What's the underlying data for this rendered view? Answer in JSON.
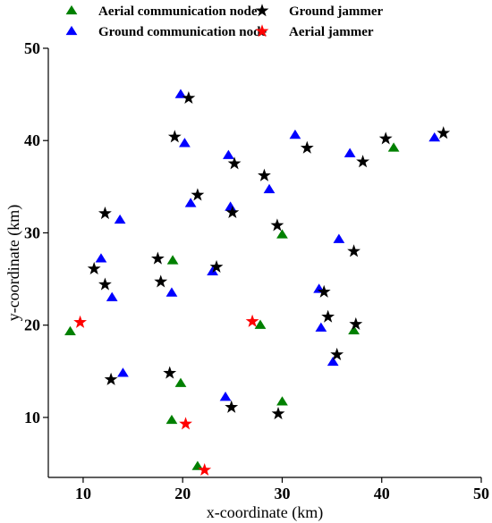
{
  "chart_data": {
    "type": "scatter",
    "title": "",
    "xlabel": "x-coordinate (km)",
    "ylabel": "y-coordinate (km)",
    "xlim": [
      6.5,
      50
    ],
    "ylim": [
      3.5,
      50
    ],
    "xticks": [
      10,
      20,
      30,
      40,
      50
    ],
    "yticks": [
      10,
      20,
      30,
      40,
      50
    ],
    "xtick_labels": [
      "10",
      "20",
      "30",
      "40",
      "50"
    ],
    "ytick_labels": [
      "10",
      "20",
      "30",
      "40",
      "50"
    ],
    "grid": false,
    "legend_position": "top",
    "series": [
      {
        "name": "Aerial communication node",
        "marker": "triangle",
        "color": "#008000",
        "points": [
          {
            "x": 8.7,
            "y": 19.3
          },
          {
            "x": 19.0,
            "y": 27.0
          },
          {
            "x": 30.0,
            "y": 29.8
          },
          {
            "x": 27.8,
            "y": 20.0
          },
          {
            "x": 37.2,
            "y": 19.4
          },
          {
            "x": 41.2,
            "y": 39.2
          },
          {
            "x": 19.8,
            "y": 13.7
          },
          {
            "x": 18.9,
            "y": 9.7
          },
          {
            "x": 30.0,
            "y": 11.7
          },
          {
            "x": 21.5,
            "y": 4.7
          }
        ]
      },
      {
        "name": "Ground communication node",
        "marker": "triangle",
        "color": "#0000ff",
        "points": [
          {
            "x": 19.8,
            "y": 45.0
          },
          {
            "x": 20.2,
            "y": 39.7
          },
          {
            "x": 24.6,
            "y": 38.4
          },
          {
            "x": 28.7,
            "y": 34.7
          },
          {
            "x": 31.3,
            "y": 40.6
          },
          {
            "x": 36.8,
            "y": 38.6
          },
          {
            "x": 45.3,
            "y": 40.3
          },
          {
            "x": 13.7,
            "y": 31.4
          },
          {
            "x": 20.8,
            "y": 33.2
          },
          {
            "x": 24.8,
            "y": 32.8
          },
          {
            "x": 11.8,
            "y": 27.2
          },
          {
            "x": 12.9,
            "y": 23.0
          },
          {
            "x": 18.9,
            "y": 23.5
          },
          {
            "x": 23.0,
            "y": 25.8
          },
          {
            "x": 35.7,
            "y": 29.3
          },
          {
            "x": 33.7,
            "y": 23.9
          },
          {
            "x": 33.9,
            "y": 19.7
          },
          {
            "x": 35.1,
            "y": 16.0
          },
          {
            "x": 14.0,
            "y": 14.8
          },
          {
            "x": 24.3,
            "y": 12.2
          }
        ]
      },
      {
        "name": "Ground jammer",
        "marker": "star",
        "color": "#000000",
        "points": [
          {
            "x": 20.6,
            "y": 44.6
          },
          {
            "x": 19.2,
            "y": 40.4
          },
          {
            "x": 25.2,
            "y": 37.5
          },
          {
            "x": 28.2,
            "y": 36.2
          },
          {
            "x": 32.5,
            "y": 39.2
          },
          {
            "x": 38.1,
            "y": 37.7
          },
          {
            "x": 40.4,
            "y": 40.2
          },
          {
            "x": 46.2,
            "y": 40.8
          },
          {
            "x": 21.5,
            "y": 34.1
          },
          {
            "x": 25.0,
            "y": 32.2
          },
          {
            "x": 12.2,
            "y": 32.1
          },
          {
            "x": 29.5,
            "y": 30.8
          },
          {
            "x": 37.2,
            "y": 28.0
          },
          {
            "x": 17.5,
            "y": 27.2
          },
          {
            "x": 11.1,
            "y": 26.1
          },
          {
            "x": 23.4,
            "y": 26.3
          },
          {
            "x": 17.8,
            "y": 24.7
          },
          {
            "x": 12.2,
            "y": 24.4
          },
          {
            "x": 34.2,
            "y": 23.6
          },
          {
            "x": 34.6,
            "y": 20.9
          },
          {
            "x": 37.4,
            "y": 20.1
          },
          {
            "x": 35.5,
            "y": 16.8
          },
          {
            "x": 18.7,
            "y": 14.8
          },
          {
            "x": 12.8,
            "y": 14.1
          },
          {
            "x": 24.9,
            "y": 11.1
          },
          {
            "x": 29.6,
            "y": 10.4
          }
        ]
      },
      {
        "name": "Aerial jammer",
        "marker": "star",
        "color": "#ff0000",
        "points": [
          {
            "x": 9.7,
            "y": 20.3
          },
          {
            "x": 27.0,
            "y": 20.4
          },
          {
            "x": 20.3,
            "y": 9.3
          },
          {
            "x": 22.2,
            "y": 4.3
          }
        ]
      }
    ]
  }
}
